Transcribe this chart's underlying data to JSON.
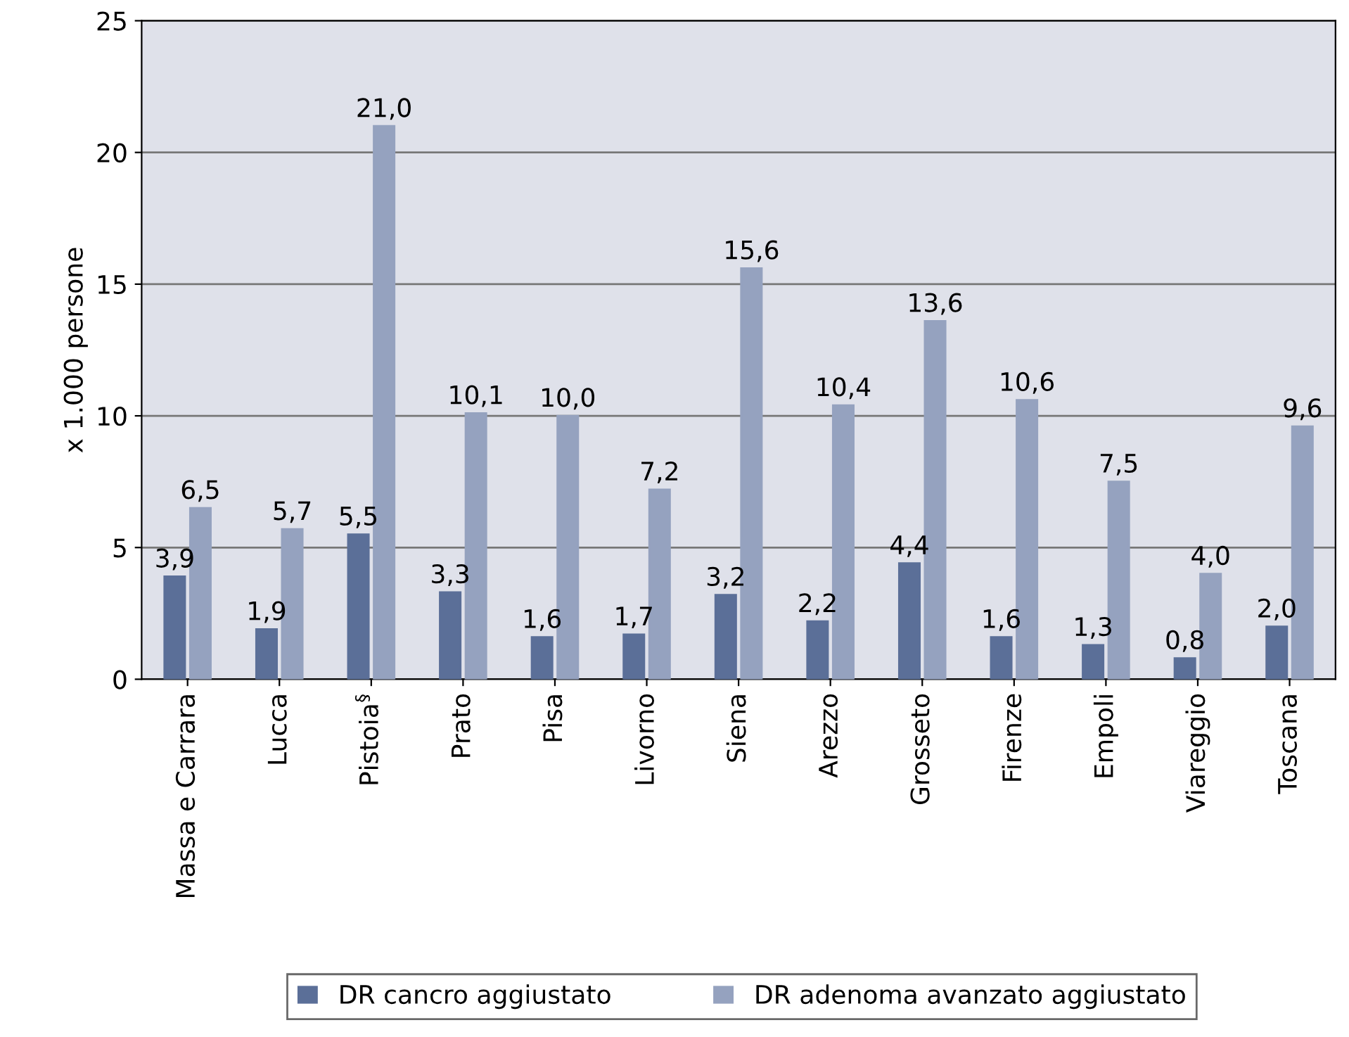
{
  "chart_data": {
    "type": "bar",
    "ylabel": "x 1.000 persone",
    "categories": [
      "Massa e Carrara",
      "Lucca",
      "Pistoia$^{§}$",
      "Prato",
      "Pisa",
      "Livorno",
      "Siena",
      "Arezzo",
      "Grosseto",
      "Firenze",
      "Empoli",
      "Viareggio",
      "Toscana"
    ],
    "series": [
      {
        "name": "DR cancro aggiustato",
        "color": "#5b6f98",
        "values": [
          3.9,
          1.9,
          5.5,
          3.3,
          1.6,
          1.7,
          3.2,
          2.2,
          4.4,
          1.6,
          1.3,
          0.8,
          2.0
        ],
        "value_labels": [
          "3,9",
          "1,9",
          "5,5",
          "3,3",
          "1,6",
          "1,7",
          "3,2",
          "2,2",
          "4,4",
          "1,6",
          "1,3",
          "0,8",
          "2,0"
        ]
      },
      {
        "name": "DR adenoma avanzato aggiustato",
        "color": "#95a2bf",
        "values": [
          6.5,
          5.7,
          21.0,
          10.1,
          10.0,
          7.2,
          15.6,
          10.4,
          13.6,
          10.6,
          7.5,
          4.0,
          9.6
        ],
        "value_labels": [
          "6,5",
          "5,7",
          "21,0",
          "10,1",
          "10,0",
          "7,2",
          "15,6",
          "10,4",
          "13,6",
          "10,6",
          "7,5",
          "4,0",
          "9,6"
        ]
      }
    ],
    "ylim": [
      0,
      25
    ],
    "yticks": [
      0,
      5,
      10,
      15,
      20,
      25
    ],
    "grid": "y",
    "legend": "bottom"
  }
}
